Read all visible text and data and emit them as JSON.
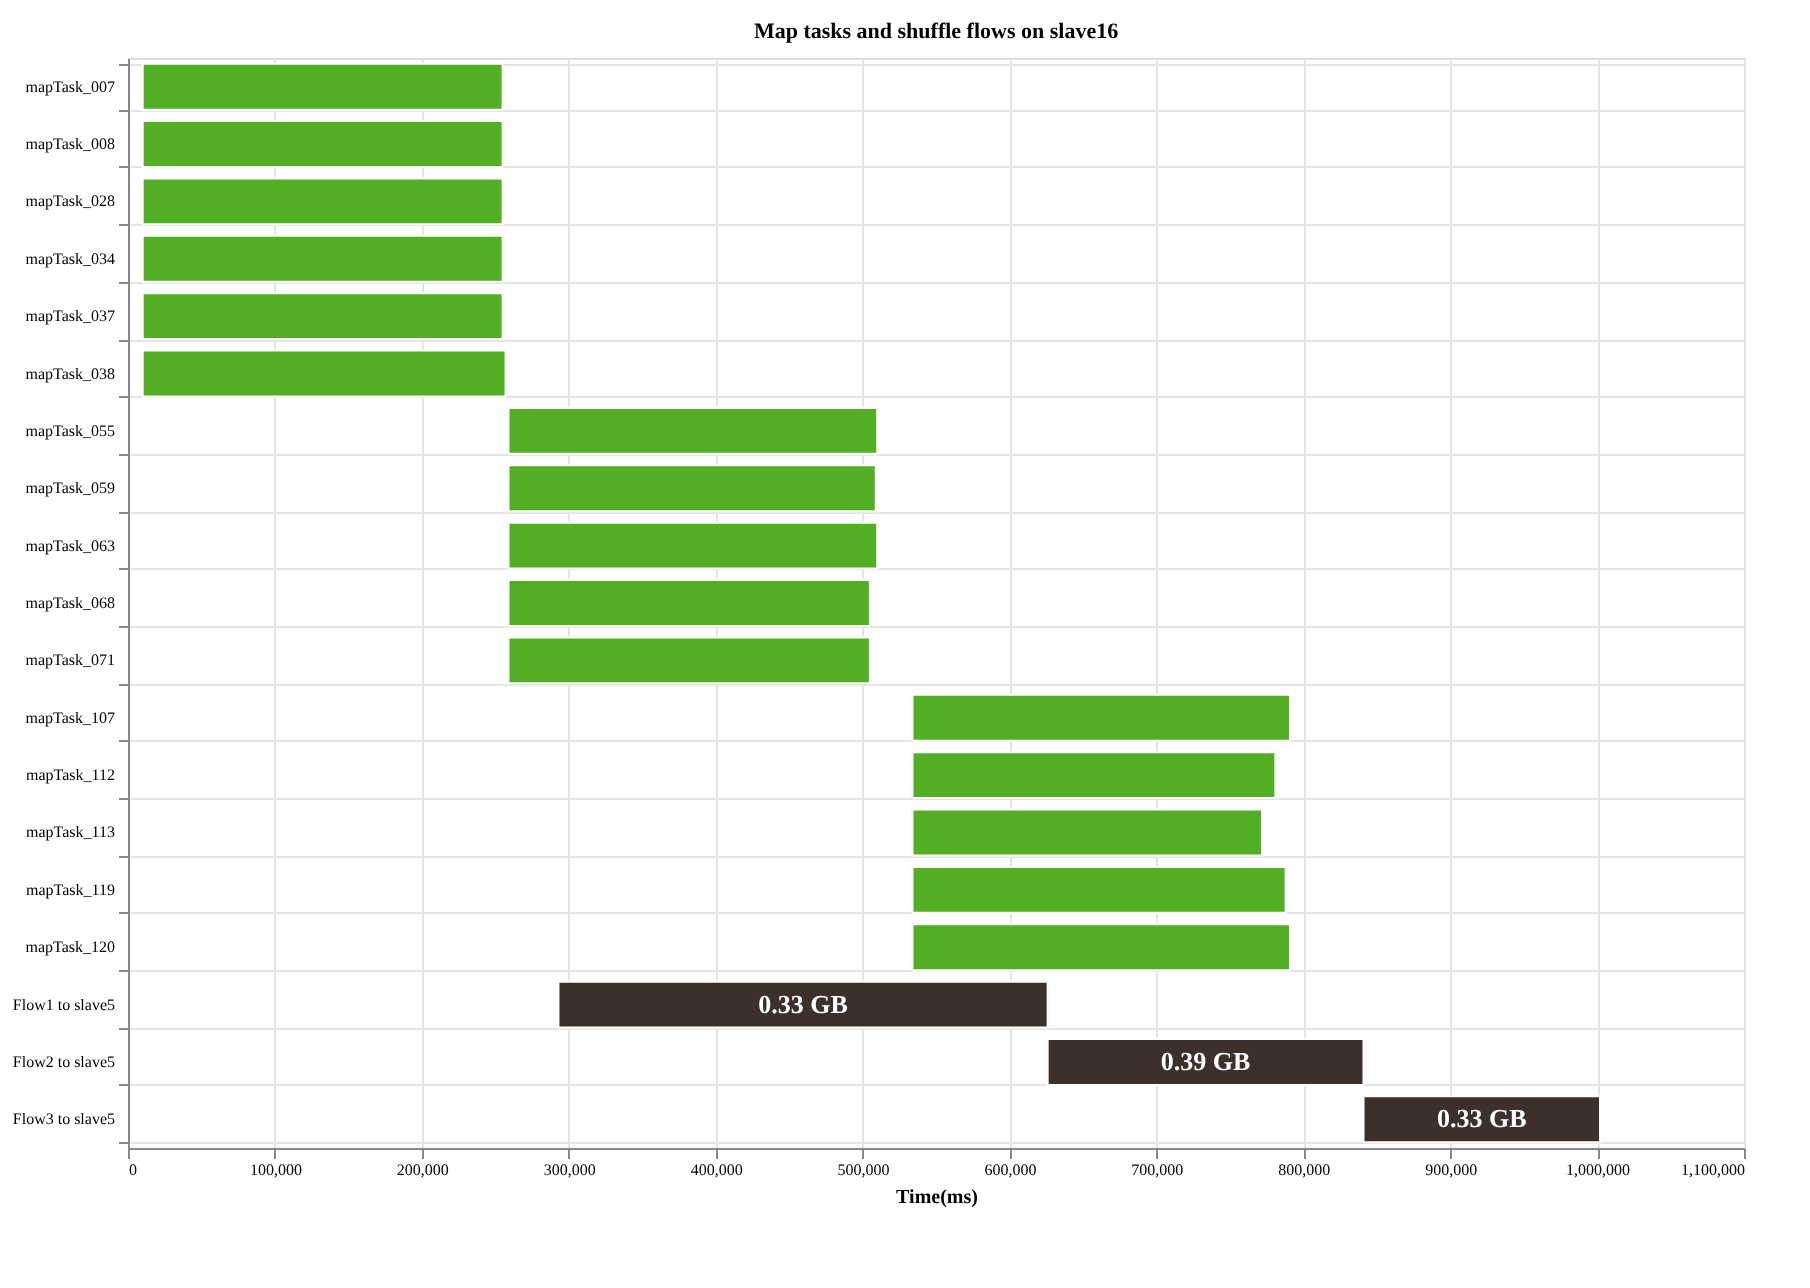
{
  "chart_data": {
    "type": "bar",
    "orientation": "horizontal",
    "title": "Map tasks and shuffle flows on slave16",
    "xlabel": "Time(ms)",
    "categories": [
      "mapTask_007",
      "mapTask_008",
      "mapTask_028",
      "mapTask_034",
      "mapTask_037",
      "mapTask_038",
      "mapTask_055",
      "mapTask_059",
      "mapTask_063",
      "mapTask_068",
      "mapTask_071",
      "mapTask_107",
      "mapTask_112",
      "mapTask_113",
      "mapTask_119",
      "mapTask_120",
      "Flow1 to slave5",
      "Flow2 to slave5",
      "Flow3 to slave5"
    ],
    "series": [
      {
        "color": "#52ae23",
        "base": [
          10000,
          10000,
          10000,
          10000,
          10000,
          10000,
          259000,
          259000,
          259000,
          259000,
          259000,
          534000,
          534000,
          534000,
          534000,
          534000,
          null,
          null,
          null
        ],
        "values": [
          245000,
          245000,
          245000,
          245000,
          245000,
          247000,
          251000,
          250000,
          251000,
          246000,
          246000,
          257000,
          247000,
          238000,
          254000,
          257000,
          null,
          null,
          null
        ]
      },
      {
        "color": "#3d302a",
        "base": [
          null,
          null,
          null,
          null,
          null,
          null,
          null,
          null,
          null,
          null,
          null,
          null,
          null,
          null,
          null,
          null,
          293000,
          626000,
          841000
        ],
        "values": [
          null,
          null,
          null,
          null,
          null,
          null,
          null,
          null,
          null,
          null,
          null,
          null,
          null,
          null,
          null,
          null,
          333000,
          215000,
          161000
        ]
      }
    ],
    "annotations": [
      {
        "text": "0.33 GB",
        "x": 459500,
        "y": "Flow1 to slave5"
      },
      {
        "text": "0.39 GB",
        "x": 733500,
        "y": "Flow2 to slave5"
      },
      {
        "text": "0.33 GB",
        "x": 921500,
        "y": "Flow3 to slave5"
      }
    ],
    "xlim": [
      0,
      1100000
    ],
    "xticks": [
      0,
      {
        "value": 100000,
        "label": "100,000"
      },
      {
        "value": 200000,
        "label": "200,000"
      },
      {
        "value": 300000,
        "label": "300,000"
      },
      {
        "value": 400000,
        "label": "400,000"
      },
      {
        "value": 500000,
        "label": "500,000"
      },
      {
        "value": 600000,
        "label": "600,000"
      },
      {
        "value": 700000,
        "label": "700,000"
      },
      {
        "value": 800000,
        "label": "800,000"
      },
      {
        "value": 900000,
        "label": "900,000"
      },
      {
        "value": 1000000,
        "label": "1,000,000"
      },
      {
        "value": 1100000,
        "label": "1,100,000"
      }
    ],
    "grid": true
  }
}
